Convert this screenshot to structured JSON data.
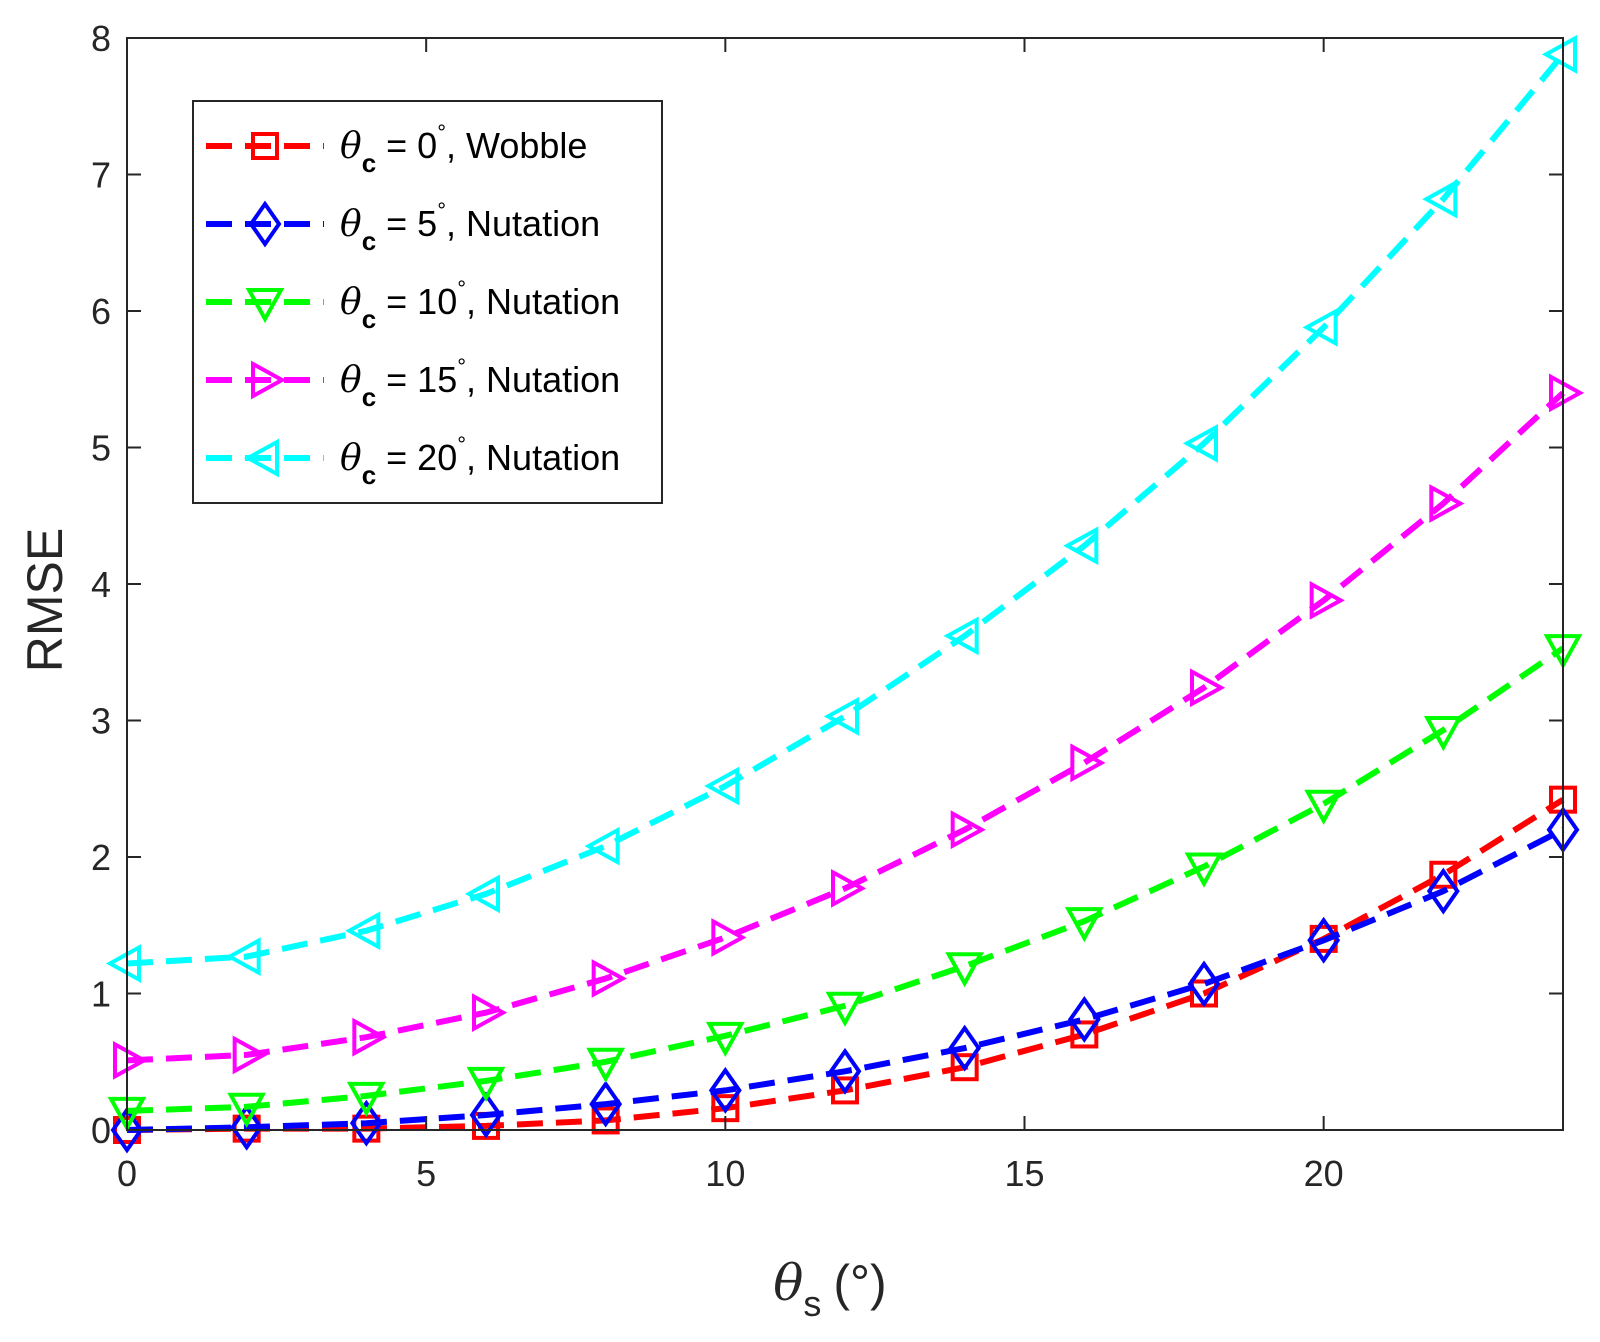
{
  "chart_data": {
    "type": "line",
    "title": "",
    "xlabel": "(°)",
    "xlabel_symbol": "θ",
    "xlabel_subscript": "s",
    "ylabel": "RMSE",
    "xlim": [
      0,
      24
    ],
    "ylim": [
      0,
      8
    ],
    "xticks": [
      "0",
      "5",
      "10",
      "15",
      "20"
    ],
    "yticks": [
      "0",
      "1",
      "2",
      "3",
      "4",
      "5",
      "6",
      "7",
      "8"
    ],
    "grid": false,
    "legend_position": "top-left",
    "x": [
      0,
      2,
      4,
      6,
      8,
      10,
      12,
      14,
      16,
      18,
      20,
      22,
      24
    ],
    "series": [
      {
        "name": "θc = 0°, Wobble",
        "legend": {
          "symbol": "θ",
          "subscript": "c",
          "value": " = 0",
          "sup": "°",
          "rest": ", Wobble"
        },
        "color": "#ff0000",
        "marker": "square",
        "values": [
          0.0,
          0.01,
          0.01,
          0.03,
          0.07,
          0.16,
          0.29,
          0.46,
          0.7,
          1.0,
          1.4,
          1.87,
          2.42
        ]
      },
      {
        "name": "θc = 5°, Nutation",
        "legend": {
          "symbol": "θ",
          "subscript": "c",
          "value": " = 5",
          "sup": "°",
          "rest": ", Nutation"
        },
        "color": "#0000ff",
        "marker": "diamond",
        "values": [
          0.0,
          0.02,
          0.05,
          0.11,
          0.19,
          0.29,
          0.43,
          0.6,
          0.81,
          1.07,
          1.39,
          1.75,
          2.2
        ]
      },
      {
        "name": "θc = 10°, Nutation",
        "legend": {
          "symbol": "θ",
          "subscript": "c",
          "value": " = 10",
          "sup": "°",
          "rest": ", Nutation"
        },
        "color": "#00ff00",
        "marker": "triangle-down",
        "values": [
          0.14,
          0.17,
          0.25,
          0.36,
          0.5,
          0.69,
          0.91,
          1.2,
          1.53,
          1.93,
          2.39,
          2.93,
          3.53
        ]
      },
      {
        "name": "θc = 15°, Nutation",
        "legend": {
          "symbol": "θ",
          "subscript": "c",
          "value": " = 15",
          "sup": "°",
          "rest": ", Nutation"
        },
        "color": "#ff00ff",
        "marker": "triangle-right",
        "values": [
          0.51,
          0.55,
          0.68,
          0.86,
          1.11,
          1.41,
          1.77,
          2.2,
          2.69,
          3.24,
          3.88,
          4.59,
          5.4
        ]
      },
      {
        "name": "θc = 20°, Nutation",
        "legend": {
          "symbol": "θ",
          "subscript": "c",
          "value": " = 20",
          "sup": "°",
          "rest": ", Nutation"
        },
        "color": "#00ffff",
        "marker": "triangle-left",
        "values": [
          1.22,
          1.27,
          1.46,
          1.73,
          2.08,
          2.52,
          3.03,
          3.62,
          4.28,
          5.03,
          5.88,
          6.82,
          7.88
        ]
      }
    ]
  }
}
